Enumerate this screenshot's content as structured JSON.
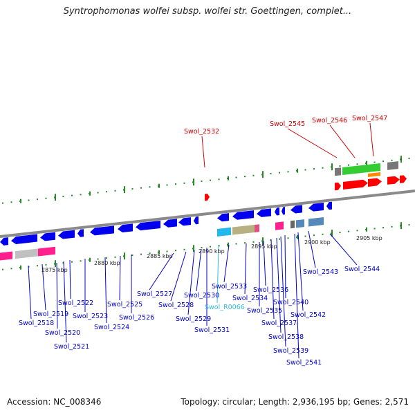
{
  "title": "Syntrophomonas wolfei subsp. wolfei str. Goettingen, complet...",
  "footer": {
    "accession": "Accession: NC_008346",
    "summary": "Topology: circular; Length: 2,936,195 bp; Genes: 2,571"
  },
  "colors": {
    "backbone": "#8a8a8a",
    "forward_gene": "#ff0000",
    "reverse_gene": "#0000ee",
    "tick": "#228b22",
    "label_reverse": "#0000cc",
    "label_forward": "#cc0000",
    "label_rna": "#33bbdd"
  },
  "scale_labels": [
    "2875 kbp",
    "2880 kbp",
    "2885 kbp",
    "2890 kbp",
    "2895 kbp",
    "2900 kbp",
    "2905 kbp"
  ],
  "gene_labels": [
    {
      "text": "Swol_2518",
      "strand": "reverse"
    },
    {
      "text": "Swol_2519",
      "strand": "reverse"
    },
    {
      "text": "Swol_2520",
      "strand": "reverse"
    },
    {
      "text": "Swol_2521",
      "strand": "reverse"
    },
    {
      "text": "Swol_2522",
      "strand": "reverse"
    },
    {
      "text": "Swol_2523",
      "strand": "reverse"
    },
    {
      "text": "Swol_2524",
      "strand": "reverse"
    },
    {
      "text": "Swol_2525",
      "strand": "reverse"
    },
    {
      "text": "Swol_2526",
      "strand": "reverse"
    },
    {
      "text": "Swol_2527",
      "strand": "reverse"
    },
    {
      "text": "Swol_2528",
      "strand": "reverse"
    },
    {
      "text": "Swol_2529",
      "strand": "reverse"
    },
    {
      "text": "Swol_2530",
      "strand": "reverse"
    },
    {
      "text": "Swol_2531",
      "strand": "reverse"
    },
    {
      "text": "Swol_R0066",
      "strand": "rna"
    },
    {
      "text": "Swol_2533",
      "strand": "reverse"
    },
    {
      "text": "Swol_2534",
      "strand": "reverse"
    },
    {
      "text": "Swol_2535",
      "strand": "reverse"
    },
    {
      "text": "Swol_2536",
      "strand": "reverse"
    },
    {
      "text": "Swol_2537",
      "strand": "reverse"
    },
    {
      "text": "Swol_2538",
      "strand": "reverse"
    },
    {
      "text": "Swol_2539",
      "strand": "reverse"
    },
    {
      "text": "Swol_2540",
      "strand": "reverse"
    },
    {
      "text": "Swol_2541",
      "strand": "reverse"
    },
    {
      "text": "Swol_2542",
      "strand": "reverse"
    },
    {
      "text": "Swol_2543",
      "strand": "reverse"
    },
    {
      "text": "Swol_2544",
      "strand": "reverse"
    },
    {
      "text": "Swol_2532",
      "strand": "forward"
    },
    {
      "text": "Swol_2545",
      "strand": "forward"
    },
    {
      "text": "Swol_2546",
      "strand": "forward"
    },
    {
      "text": "Swol_2547",
      "strand": "forward"
    }
  ]
}
